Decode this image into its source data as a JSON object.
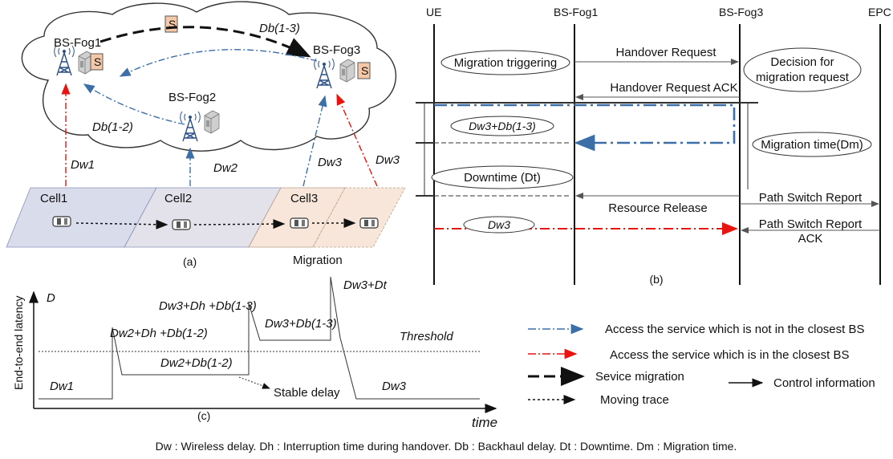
{
  "panel_a": {
    "bs_fog1": "BS-Fog1",
    "bs_fog2": "BS-Fog2",
    "bs_fog3": "BS-Fog3",
    "service_label": "S",
    "db13": "Db(1-3)",
    "db12": "Db(1-2)",
    "dw1": "Dw1",
    "dw2": "Dw2",
    "dw3_a": "Dw3",
    "dw3_b": "Dw3",
    "cell1": "Cell1",
    "cell2": "Cell2",
    "cell3": "Cell3",
    "migration": "Migration",
    "caption": "(a)"
  },
  "panel_b": {
    "ue": "UE",
    "bs_fog1": "BS-Fog1",
    "bs_fog3": "BS-Fog3",
    "epc": "EPC",
    "migration_triggering": "Migration triggering",
    "handover_request": "Handover  Request",
    "decision_line1": "Decision for",
    "decision_line2": "migration request",
    "handover_ack": "Handover Request ACK",
    "dw3_db13": "Dw3+Db(1-3)",
    "migration_time": "Migration time(Dm)",
    "downtime": "Downtime (Dt)",
    "resource_release": "Resource Release",
    "path_switch_report": "Path Switch Report",
    "path_switch_ack_line1": "Path Switch Report",
    "path_switch_ack_line2": "ACK",
    "dw3": "Dw3",
    "caption": "(b)"
  },
  "panel_c": {
    "ylabel": "End-to-end latency",
    "y_symbol": "D",
    "xlabel": "time",
    "dw1": "Dw1",
    "dw2_dh_db12": "Dw2+Dh +Db(1-2)",
    "dw2_db12": "Dw2+Db(1-2)",
    "dw3_dh_db13": "Dw3+Dh +Db(1-3)",
    "dw3_db13": "Dw3+Db(1-3)",
    "dw3_dt": "Dw3+Dt",
    "dw3": "Dw3",
    "threshold": "Threshold",
    "stable_delay": "Stable delay",
    "caption": "(c)"
  },
  "legend": {
    "not_closest": "Access the service which is not in the closest BS",
    "closest": "Access the service which is in the closest BS",
    "migration": "Sevice migration",
    "control": "Control information",
    "moving": "Moving trace"
  },
  "footnote": "Dw : Wireless delay.  Dh : Interruption time during handover. Db : Backhaul delay. Dt : Downtime. Dm : Migration time.",
  "colors": {
    "blue": "#3c6fa7",
    "red": "#e8140f",
    "cell_blue": "#d9dceb",
    "cell_orange": "#f8e6da"
  }
}
